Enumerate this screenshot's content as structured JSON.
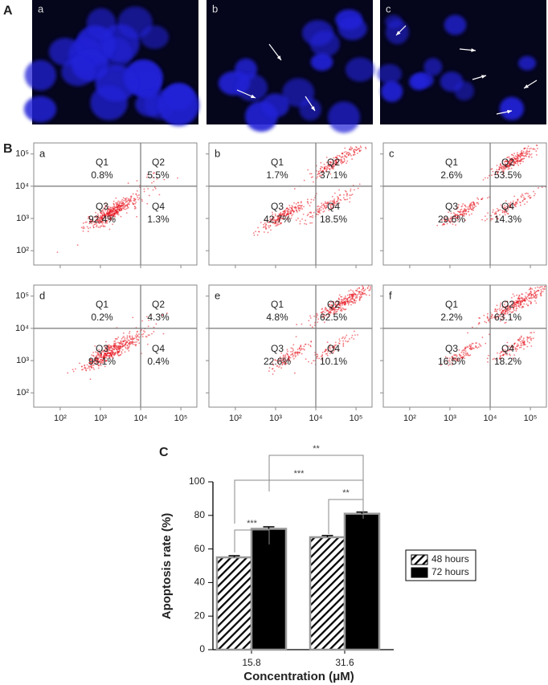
{
  "panel_a": {
    "label": "A",
    "images": [
      "a",
      "b",
      "c"
    ]
  },
  "panel_b": {
    "label": "B",
    "scale": "log",
    "gate": 10000,
    "xlim": [
      22,
      250000
    ],
    "ylim": [
      36,
      220000
    ],
    "xticks": [
      {
        "value": 100,
        "label": "10²"
      },
      {
        "value": 1000,
        "label": "10³"
      },
      {
        "value": 10000,
        "label": "10⁴"
      },
      {
        "value": 100000,
        "label": "10⁵"
      }
    ],
    "yticks": [
      {
        "value": 100,
        "label": "10²"
      },
      {
        "value": 1000,
        "label": "10³"
      },
      {
        "value": 10000,
        "label": "10⁴"
      },
      {
        "value": 100000,
        "label": "10⁵"
      }
    ],
    "dot_color": "#e8111b",
    "plots": [
      {
        "label": "a",
        "quadrants": [
          {
            "name": "Q1",
            "value": "0.8%"
          },
          {
            "name": "Q2",
            "value": "5.5%"
          },
          {
            "name": "Q3",
            "value": "92.4%"
          },
          {
            "name": "Q4",
            "value": "1.3%"
          }
        ]
      },
      {
        "label": "b",
        "quadrants": [
          {
            "name": "Q1",
            "value": "1.7%"
          },
          {
            "name": "Q2",
            "value": "37.1%"
          },
          {
            "name": "Q3",
            "value": "42.7%"
          },
          {
            "name": "Q4",
            "value": "18.5%"
          }
        ]
      },
      {
        "label": "c",
        "quadrants": [
          {
            "name": "Q1",
            "value": "2.6%"
          },
          {
            "name": "Q2",
            "value": "53.5%"
          },
          {
            "name": "Q3",
            "value": "29.6%"
          },
          {
            "name": "Q4",
            "value": "14.3%"
          }
        ]
      },
      {
        "label": "d",
        "quadrants": [
          {
            "name": "Q1",
            "value": "0.2%"
          },
          {
            "name": "Q2",
            "value": "4.3%"
          },
          {
            "name": "Q3",
            "value": "95.1%"
          },
          {
            "name": "Q4",
            "value": "0.4%"
          }
        ]
      },
      {
        "label": "e",
        "quadrants": [
          {
            "name": "Q1",
            "value": "4.8%"
          },
          {
            "name": "Q2",
            "value": "62.5%"
          },
          {
            "name": "Q3",
            "value": "22.6%"
          },
          {
            "name": "Q4",
            "value": "10.1%"
          }
        ]
      },
      {
        "label": "f",
        "quadrants": [
          {
            "name": "Q1",
            "value": "2.2%"
          },
          {
            "name": "Q2",
            "value": "63.1%"
          },
          {
            "name": "Q3",
            "value": "16.5%"
          },
          {
            "name": "Q4",
            "value": "18.2%"
          }
        ]
      }
    ]
  },
  "chart_data": {
    "type": "bar",
    "label": "C",
    "xlabel": "Concentration (μM)",
    "ylabel": "Apoptosis rate (%)",
    "categories": [
      "15.8",
      "31.6"
    ],
    "series": [
      {
        "name": "48 hours",
        "color": "#000000",
        "hatch": true,
        "values": [
          55,
          67
        ],
        "errors": [
          1,
          1
        ]
      },
      {
        "name": "72 hours",
        "color": "#000000",
        "hatch": false,
        "values": [
          72,
          81
        ],
        "errors": [
          1.2,
          1
        ]
      }
    ],
    "ylim": [
      0,
      100
    ],
    "yticks": [
      0,
      20,
      40,
      60,
      80,
      100
    ],
    "annotations": [
      "***",
      "***",
      "**",
      "**"
    ]
  }
}
